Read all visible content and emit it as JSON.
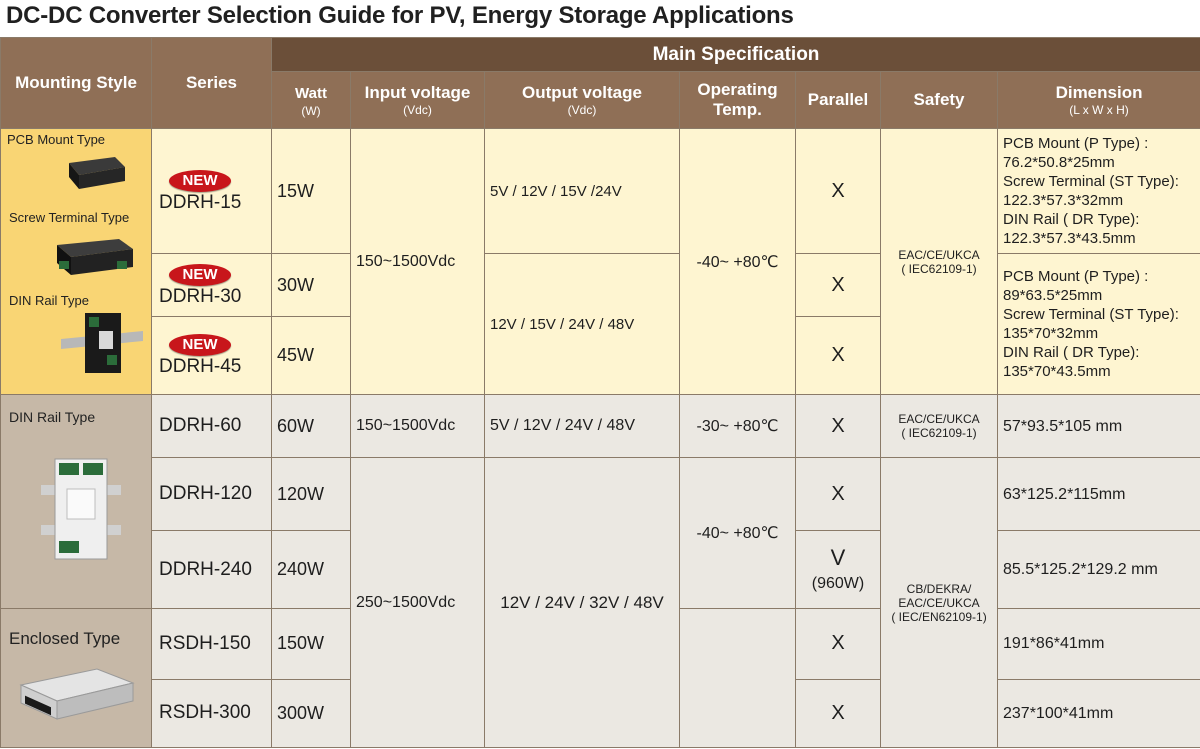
{
  "title": "DC-DC  Converter Selection Guide for PV, Energy Storage Applications",
  "headers": {
    "mounting_style": "Mounting Style",
    "series": "Series",
    "main_spec": "Main  Specification",
    "watt": "Watt",
    "watt_unit": "(W)",
    "input_voltage": "Input voltage",
    "input_unit": "(Vdc)",
    "output_voltage": "Output voltage",
    "output_unit": "(Vdc)",
    "operating_temp": "Operating Temp.",
    "parallel": "Parallel",
    "safety": "Safety",
    "dimension": "Dimension",
    "dimension_unit": "(L x W x  H)"
  },
  "mounting": {
    "pcb": "PCB  Mount  Type",
    "screw": "Screw Terminal Type",
    "din1": "DIN Rail Type",
    "din2": "DIN Rail Type",
    "enclosed": "Enclosed Type"
  },
  "badge": "NEW",
  "rows": [
    {
      "series": "DDRH-15",
      "watt": "15W",
      "parallel": "X"
    },
    {
      "series": "DDRH-30",
      "watt": "30W",
      "parallel": "X"
    },
    {
      "series": "DDRH-45",
      "watt": "45W",
      "parallel": "X"
    },
    {
      "series": "DDRH-60",
      "watt": "60W",
      "parallel": "X"
    },
    {
      "series": "DDRH-120",
      "watt": "120W",
      "parallel": "X"
    },
    {
      "series": "DDRH-240",
      "watt": "240W",
      "parallel": "V",
      "parallel_note": "(960W)"
    },
    {
      "series": "RSDH-150",
      "watt": "150W",
      "parallel": "X"
    },
    {
      "series": "RSDH-300",
      "watt": "300W",
      "parallel": "X"
    }
  ],
  "groups": {
    "input_a": "150~1500Vdc",
    "input_b": "150~1500Vdc",
    "input_c": "250~1500Vdc",
    "output_a": "5V / 12V / 15V /24V",
    "output_b": "12V / 15V / 24V / 48V",
    "output_c": "5V / 12V / 24V / 48V",
    "output_d": "12V / 24V / 32V / 48V",
    "temp_a": "-40~ +80℃",
    "temp_b": "-30~ +80℃",
    "temp_c": "-40~  +80℃",
    "safety_a_1": "EAC/CE/UKCA",
    "safety_a_2": "( IEC62109-1)",
    "safety_b_1": "EAC/CE/UKCA",
    "safety_b_2": "( IEC62109-1)",
    "safety_c_1": "CB/DEKRA/",
    "safety_c_2": "EAC/CE/UKCA",
    "safety_c_3": "( IEC/EN62109-1)"
  },
  "dimensions": {
    "ddrh15": [
      "PCB  Mount (P Type) :",
      "76.2*50.8*25mm",
      "Screw Terminal (ST Type):",
      "122.3*57.3*32mm",
      "DIN Rail  ( DR Type):",
      "122.3*57.3*43.5mm"
    ],
    "ddrh30_45": [
      "PCB  Mount (P Type) :",
      "89*63.5*25mm",
      "Screw Terminal (ST Type):",
      "135*70*32mm",
      "DIN Rail  ( DR Type):",
      "135*70*43.5mm"
    ],
    "ddrh60": "57*93.5*105 mm",
    "ddrh120": "63*125.2*115mm",
    "ddrh240": "85.5*125.2*129.2 mm",
    "rsdh150": "191*86*41mm",
    "rsdh300": "237*100*41mm"
  }
}
